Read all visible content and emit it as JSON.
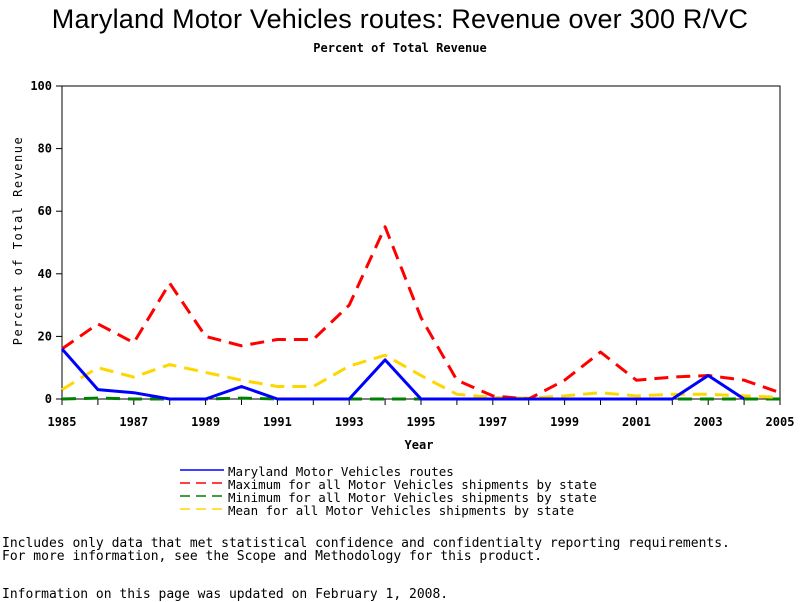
{
  "chart_data": {
    "type": "line",
    "title": "Maryland Motor Vehicles routes: Revenue over 300 R/VC",
    "subtitle": "Percent of Total Revenue",
    "xlabel": "Year",
    "ylabel": "Percent of Total Revenue",
    "xlim": [
      1985,
      2005
    ],
    "ylim": [
      0,
      100
    ],
    "x_ticks": [
      "1985",
      "1987",
      "1989",
      "1991",
      "1993",
      "1995",
      "1997",
      "1999",
      "2001",
      "2003",
      "2005"
    ],
    "y_ticks": [
      "0",
      "20",
      "40",
      "60",
      "80",
      "100"
    ],
    "grid": false,
    "legend_position": "bottom",
    "series": [
      {
        "name": "Maryland Motor Vehicles routes",
        "color": "#0000ff",
        "style": "solid",
        "x": [
          1985,
          1986,
          1987,
          1988,
          1989,
          1990,
          1991,
          1992,
          1993,
          1994,
          1995,
          1996,
          1997,
          1998,
          1999,
          2000,
          2001,
          2002,
          2003,
          2004
        ],
        "y": [
          16,
          3,
          2,
          0,
          0,
          4,
          0,
          0,
          0,
          12.5,
          0,
          0,
          0,
          0,
          0,
          0,
          0,
          0,
          7.5,
          0
        ]
      },
      {
        "name": "Maximum for all Motor Vehicles shipments by state",
        "color": "#ff0000",
        "style": "dashed",
        "x": [
          1985,
          1986,
          1987,
          1988,
          1989,
          1990,
          1991,
          1992,
          1993,
          1994,
          1995,
          1996,
          1997,
          1998,
          1999,
          2000,
          2001,
          2002,
          2003,
          2004,
          2005
        ],
        "y": [
          16,
          24,
          18,
          37,
          20,
          17,
          19,
          19,
          30,
          55,
          26,
          6,
          1,
          0,
          6,
          15,
          6,
          7,
          7.5,
          6,
          2
        ]
      },
      {
        "name": "Minimum for all Motor Vehicles shipments by state",
        "color": "#008000",
        "style": "dashed",
        "x": [
          1985,
          1986,
          1987,
          1988,
          1989,
          1990,
          1991,
          1992,
          1993,
          1994,
          1995,
          1996,
          1997,
          1998,
          1999,
          2000,
          2001,
          2002,
          2003,
          2004,
          2005
        ],
        "y": [
          0,
          0.3,
          0,
          0,
          0,
          0.3,
          0,
          0,
          0,
          0,
          0,
          0,
          0,
          0,
          0,
          0,
          0,
          0,
          0,
          0,
          0
        ]
      },
      {
        "name": "Mean for all Motor Vehicles shipments by state",
        "color": "#ffd700",
        "style": "dashed",
        "x": [
          1985,
          1986,
          1987,
          1988,
          1989,
          1990,
          1991,
          1992,
          1993,
          1994,
          1995,
          1996,
          1997,
          1998,
          1999,
          2000,
          2001,
          2002,
          2003,
          2004,
          2005
        ],
        "y": [
          3,
          10,
          7,
          11,
          8.5,
          6,
          4,
          4,
          10.5,
          14,
          7.5,
          1.5,
          0.5,
          0.3,
          1,
          2,
          1,
          1.5,
          1.5,
          1,
          0.5
        ]
      }
    ]
  },
  "notes": {
    "line1": "Includes only data that met statistical confidence and confidentialty reporting requirements.",
    "line2": "For more information, see the Scope and Methodology for this product.",
    "updated": "Information on this page was updated on February 1, 2008."
  }
}
